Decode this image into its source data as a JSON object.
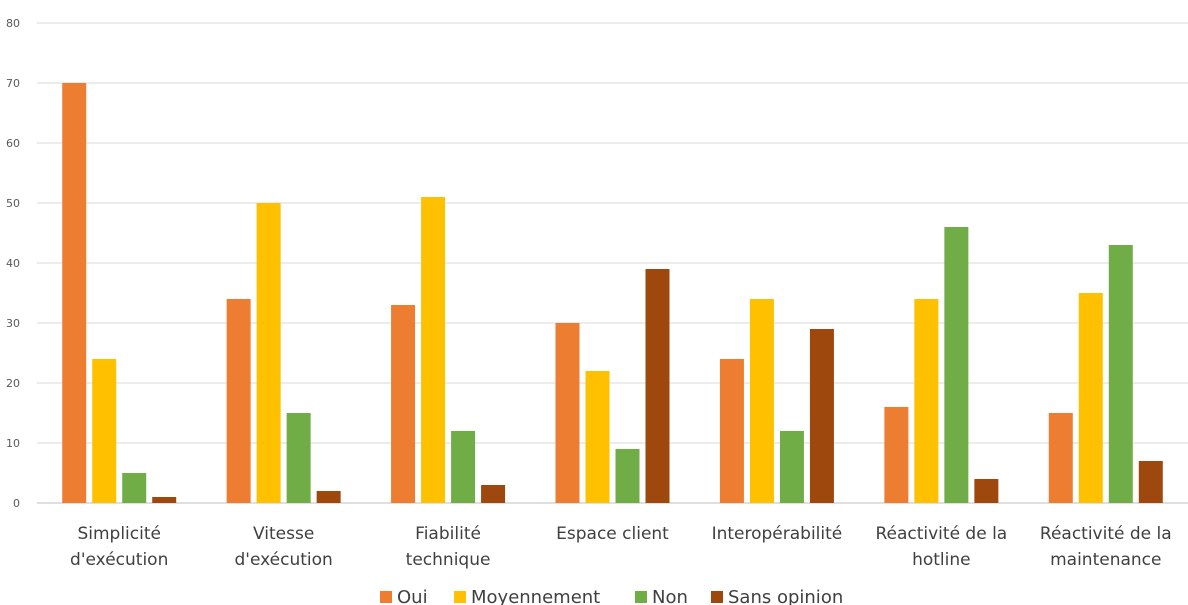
{
  "chart_data": {
    "type": "bar",
    "title": "",
    "xlabel": "",
    "ylabel": "",
    "ylim": [
      0,
      80
    ],
    "yticks": [
      0,
      10,
      20,
      30,
      40,
      50,
      60,
      70,
      80
    ],
    "grid": true,
    "legend_position": "bottom",
    "categories": [
      [
        "Simplicité",
        "d'exécution"
      ],
      [
        "Vitesse",
        "d'exécution"
      ],
      [
        "Fiabilité",
        "technique"
      ],
      [
        "Espace client"
      ],
      [
        "Interopérabilité"
      ],
      [
        "Réactivité de la",
        "hotline"
      ],
      [
        "Réactivité de la",
        "maintenance"
      ]
    ],
    "series": [
      {
        "name": "Oui",
        "color": "#ED7D31",
        "values": [
          70,
          34,
          33,
          30,
          24,
          16,
          15
        ]
      },
      {
        "name": "Moyennement",
        "color": "#FFC000",
        "values": [
          24,
          50,
          51,
          22,
          34,
          34,
          35
        ]
      },
      {
        "name": "Non",
        "color": "#70AD47",
        "values": [
          5,
          15,
          12,
          9,
          12,
          46,
          43
        ]
      },
      {
        "name": "Sans opinion",
        "color": "#9E480E",
        "values": [
          1,
          2,
          3,
          39,
          29,
          4,
          7
        ]
      }
    ]
  }
}
